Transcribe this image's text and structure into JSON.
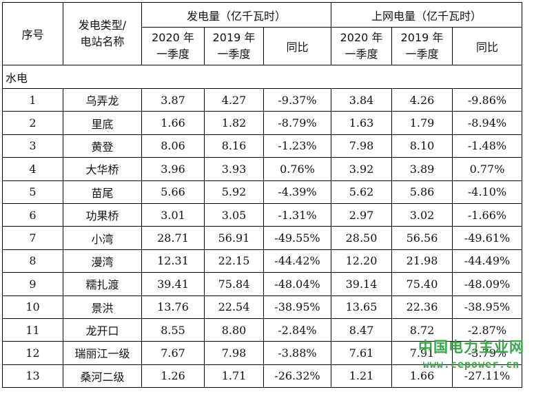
{
  "header": {
    "seq": "序号",
    "type_line1": "发电类型/",
    "type_line2": "电站名称",
    "gen_group": "发电量（亿千瓦时）",
    "grid_group": "上网电量（亿千瓦时）",
    "y2020_line1": "2020 年",
    "y2020_line2": "一季度",
    "y2019_line1": "2019 年",
    "y2019_line2": "一季度",
    "yoy": "同比"
  },
  "section": "水电",
  "rows": [
    {
      "no": "1",
      "name": "乌弄龙",
      "gen2020": "3.87",
      "gen2019": "4.27",
      "genYoy": "-9.37%",
      "grid2020": "3.84",
      "grid2019": "4.26",
      "gridYoy": "-9.86%"
    },
    {
      "no": "2",
      "name": "里底",
      "gen2020": "1.66",
      "gen2019": "1.82",
      "genYoy": "-8.79%",
      "grid2020": "1.63",
      "grid2019": "1.79",
      "gridYoy": "-8.94%"
    },
    {
      "no": "3",
      "name": "黄登",
      "gen2020": "8.06",
      "gen2019": "8.16",
      "genYoy": "-1.23%",
      "grid2020": "7.98",
      "grid2019": "8.10",
      "gridYoy": "-1.48%"
    },
    {
      "no": "4",
      "name": "大华桥",
      "gen2020": "3.96",
      "gen2019": "3.93",
      "genYoy": "0.76%",
      "grid2020": "3.92",
      "grid2019": "3.89",
      "gridYoy": "0.77%"
    },
    {
      "no": "5",
      "name": "苗尾",
      "gen2020": "5.66",
      "gen2019": "5.92",
      "genYoy": "-4.39%",
      "grid2020": "5.62",
      "grid2019": "5.86",
      "gridYoy": "-4.10%"
    },
    {
      "no": "6",
      "name": "功果桥",
      "gen2020": "3.01",
      "gen2019": "3.05",
      "genYoy": "-1.31%",
      "grid2020": "2.97",
      "grid2019": "3.02",
      "gridYoy": "-1.66%"
    },
    {
      "no": "7",
      "name": "小湾",
      "gen2020": "28.71",
      "gen2019": "56.91",
      "genYoy": "-49.55%",
      "grid2020": "28.50",
      "grid2019": "56.56",
      "gridYoy": "-49.61%"
    },
    {
      "no": "8",
      "name": "漫湾",
      "gen2020": "12.31",
      "gen2019": "22.15",
      "genYoy": "-44.42%",
      "grid2020": "12.20",
      "grid2019": "21.98",
      "gridYoy": "-44.49%"
    },
    {
      "no": "9",
      "name": "糯扎渡",
      "gen2020": "39.41",
      "gen2019": "75.84",
      "genYoy": "-48.04%",
      "grid2020": "39.14",
      "grid2019": "75.40",
      "gridYoy": "-48.09%"
    },
    {
      "no": "10",
      "name": "景洪",
      "gen2020": "13.76",
      "gen2019": "22.54",
      "genYoy": "-38.95%",
      "grid2020": "13.65",
      "grid2019": "22.36",
      "gridYoy": "-38.95%"
    },
    {
      "no": "11",
      "name": "龙开口",
      "gen2020": "8.55",
      "gen2019": "8.80",
      "genYoy": "-2.84%",
      "grid2020": "8.47",
      "grid2019": "8.72",
      "gridYoy": "-2.87%"
    },
    {
      "no": "12",
      "name": "瑞丽江一级",
      "gen2020": "7.67",
      "gen2019": "7.98",
      "genYoy": "-3.88%",
      "grid2020": "7.61",
      "grid2019": "7.91",
      "gridYoy": "-3.79%"
    },
    {
      "no": "13",
      "name": "桑河二级",
      "gen2020": "1.26",
      "gen2019": "1.71",
      "genYoy": "-26.32%",
      "grid2020": "1.21",
      "grid2019": "1.66",
      "gridYoy": "-27.11%"
    }
  ],
  "watermark": {
    "line1": "中国电力主业网",
    "line2": "www.cepower.cn"
  }
}
